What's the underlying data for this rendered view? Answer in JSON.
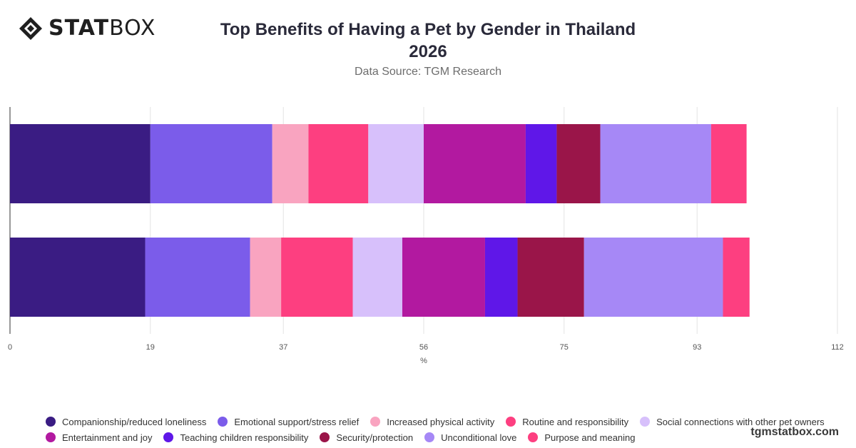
{
  "brand": {
    "logo_bold": "STAT",
    "logo_light": "BOX",
    "website": "tgmstatbox.com"
  },
  "header": {
    "title_line1": "Top Benefits of Having a Pet by Gender in Thailand",
    "title_line2": "2026",
    "subtitle": "Data Source: TGM Research"
  },
  "chart_data": {
    "type": "bar",
    "orientation": "horizontal",
    "stacked": true,
    "categories": [
      "",
      ""
    ],
    "xlabel": "%",
    "xlim": [
      0,
      112
    ],
    "xticks": [
      0,
      19,
      37,
      56,
      75,
      93,
      112
    ],
    "grid": true,
    "legend_position": "bottom",
    "series": [
      {
        "name": "Companionship/reduced loneliness",
        "color": "#3a1c83",
        "values": [
          19.0,
          18.3
        ]
      },
      {
        "name": "Emotional support/stress relief",
        "color": "#7b5cea",
        "values": [
          16.5,
          14.2
        ]
      },
      {
        "name": "Increased physical activity",
        "color": "#f9a4c0",
        "values": [
          4.9,
          4.2
        ]
      },
      {
        "name": "Routine and responsibility",
        "color": "#fd3f80",
        "values": [
          8.1,
          9.7
        ]
      },
      {
        "name": "Social connections with other pet owners",
        "color": "#d7c0fb",
        "values": [
          7.5,
          6.7
        ]
      },
      {
        "name": "Entertainment and joy",
        "color": "#b219a0",
        "values": [
          13.8,
          11.2
        ]
      },
      {
        "name": "Teaching children responsibility",
        "color": "#5f17e8",
        "values": [
          4.2,
          4.4
        ]
      },
      {
        "name": "Security/protection",
        "color": "#9a1549",
        "values": [
          5.9,
          9.0
        ]
      },
      {
        "name": "Unconditional love",
        "color": "#a688f6",
        "values": [
          15.0,
          18.8
        ]
      },
      {
        "name": "Purpose and meaning",
        "color": "#fd3f80",
        "values": [
          4.8,
          3.6
        ]
      }
    ]
  }
}
